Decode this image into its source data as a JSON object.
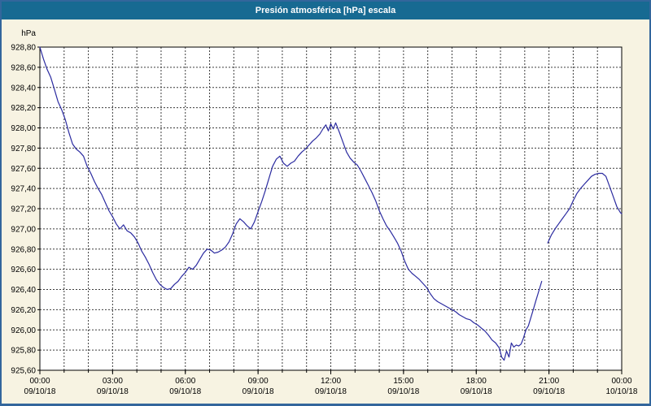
{
  "window": {
    "title": "Presión atmosférica [hPa] escala"
  },
  "colors": {
    "titlebar_bg": "#176a92",
    "titlebar_text": "#ffffff",
    "window_bg": "#f7f3e2",
    "window_border": "#33669c",
    "plot_bg": "#ffffff",
    "plot_border": "#000000",
    "grid_color": "#3c3c3c",
    "line_color": "#2b2ba0",
    "axis_text": "#000000"
  },
  "chart_data": {
    "type": "line",
    "title": "Presión atmosférica [hPa] escala",
    "ylabel": "hPa",
    "ylim": [
      925.6,
      928.8
    ],
    "y_step": 0.2,
    "decimal_separator": ",",
    "xlim_hours": [
      0,
      24
    ],
    "x_minor_every_hours": 1,
    "grid": "dashed",
    "legend": "none",
    "x_major_ticks": [
      {
        "hour": 0,
        "time": "00:00",
        "date": "09/10/18"
      },
      {
        "hour": 3,
        "time": "03:00",
        "date": "09/10/18"
      },
      {
        "hour": 6,
        "time": "06:00",
        "date": "09/10/18"
      },
      {
        "hour": 9,
        "time": "09:00",
        "date": "09/10/18"
      },
      {
        "hour": 12,
        "time": "12:00",
        "date": "09/10/18"
      },
      {
        "hour": 15,
        "time": "15:00",
        "date": "09/10/18"
      },
      {
        "hour": 18,
        "time": "18:00",
        "date": "09/10/18"
      },
      {
        "hour": 21,
        "time": "21:00",
        "date": "09/10/18"
      },
      {
        "hour": 24,
        "time": "00:00",
        "date": "10/10/18"
      }
    ],
    "series": [
      {
        "name": "Presión atmosférica",
        "color": "#2b2ba0",
        "segments": [
          [
            [
              0,
              928.8
            ],
            [
              0.15,
              928.68
            ],
            [
              0.3,
              928.58
            ],
            [
              0.45,
              928.5
            ],
            [
              0.6,
              928.38
            ],
            [
              0.75,
              928.26
            ],
            [
              0.9,
              928.18
            ],
            [
              1.05,
              928.08
            ],
            [
              1.2,
              927.95
            ],
            [
              1.35,
              927.84
            ],
            [
              1.5,
              927.79
            ],
            [
              1.65,
              927.76
            ],
            [
              1.8,
              927.72
            ],
            [
              1.95,
              927.62
            ],
            [
              2.1,
              927.55
            ],
            [
              2.25,
              927.47
            ],
            [
              2.4,
              927.4
            ],
            [
              2.55,
              927.34
            ],
            [
              2.7,
              927.26
            ],
            [
              2.85,
              927.18
            ],
            [
              3,
              927.12
            ],
            [
              3.15,
              927.05
            ],
            [
              3.3,
              927.0
            ],
            [
              3.45,
              927.04
            ],
            [
              3.6,
              926.98
            ],
            [
              3.75,
              926.96
            ],
            [
              3.9,
              926.92
            ],
            [
              4.05,
              926.86
            ],
            [
              4.2,
              926.78
            ],
            [
              4.35,
              926.72
            ],
            [
              4.5,
              926.65
            ],
            [
              4.65,
              926.57
            ],
            [
              4.8,
              926.5
            ],
            [
              4.95,
              926.45
            ],
            [
              5.1,
              926.42
            ],
            [
              5.25,
              926.4
            ],
            [
              5.4,
              926.41
            ],
            [
              5.55,
              926.45
            ],
            [
              5.7,
              926.48
            ],
            [
              5.85,
              926.53
            ],
            [
              6,
              926.57
            ],
            [
              6.15,
              926.62
            ],
            [
              6.3,
              926.6
            ],
            [
              6.45,
              926.64
            ],
            [
              6.6,
              926.7
            ],
            [
              6.75,
              926.76
            ],
            [
              6.9,
              926.8
            ],
            [
              7.05,
              926.79
            ],
            [
              7.2,
              926.76
            ],
            [
              7.35,
              926.77
            ],
            [
              7.5,
              926.79
            ],
            [
              7.65,
              926.82
            ],
            [
              7.8,
              926.87
            ],
            [
              7.95,
              926.95
            ],
            [
              8.1,
              927.05
            ],
            [
              8.25,
              927.1
            ],
            [
              8.4,
              927.07
            ],
            [
              8.55,
              927.03
            ],
            [
              8.7,
              927.0
            ],
            [
              8.85,
              927.07
            ],
            [
              9,
              927.17
            ],
            [
              9.15,
              927.27
            ],
            [
              9.3,
              927.38
            ],
            [
              9.45,
              927.5
            ],
            [
              9.6,
              927.62
            ],
            [
              9.75,
              927.69
            ],
            [
              9.9,
              927.72
            ],
            [
              10.05,
              927.65
            ],
            [
              10.2,
              927.62
            ],
            [
              10.35,
              927.65
            ],
            [
              10.5,
              927.67
            ],
            [
              10.65,
              927.72
            ],
            [
              10.8,
              927.76
            ],
            [
              10.95,
              927.79
            ],
            [
              11.1,
              927.83
            ],
            [
              11.25,
              927.87
            ],
            [
              11.4,
              927.9
            ],
            [
              11.55,
              927.94
            ],
            [
              11.7,
              928.0
            ],
            [
              11.8,
              928.03
            ],
            [
              11.9,
              927.97
            ],
            [
              12,
              928.04
            ],
            [
              12.1,
              927.99
            ],
            [
              12.2,
              928.05
            ],
            [
              12.35,
              927.96
            ],
            [
              12.5,
              927.86
            ],
            [
              12.65,
              927.76
            ],
            [
              12.8,
              927.7
            ],
            [
              12.95,
              927.66
            ],
            [
              13.1,
              927.63
            ],
            [
              13.25,
              927.57
            ],
            [
              13.4,
              927.5
            ],
            [
              13.55,
              927.43
            ],
            [
              13.7,
              927.36
            ],
            [
              13.85,
              927.28
            ],
            [
              14,
              927.18
            ],
            [
              14.15,
              927.1
            ],
            [
              14.3,
              927.03
            ],
            [
              14.45,
              926.98
            ],
            [
              14.6,
              926.92
            ],
            [
              14.75,
              926.86
            ],
            [
              14.9,
              926.78
            ],
            [
              15.05,
              926.68
            ],
            [
              15.2,
              926.6
            ],
            [
              15.35,
              926.56
            ],
            [
              15.5,
              926.53
            ],
            [
              15.65,
              926.5
            ],
            [
              15.8,
              926.46
            ],
            [
              15.95,
              926.42
            ],
            [
              16.1,
              926.36
            ],
            [
              16.25,
              926.31
            ],
            [
              16.4,
              926.28
            ],
            [
              16.55,
              926.26
            ],
            [
              16.7,
              926.24
            ],
            [
              16.85,
              926.22
            ],
            [
              17,
              926.2
            ],
            [
              17.15,
              926.18
            ],
            [
              17.3,
              926.15
            ],
            [
              17.45,
              926.13
            ],
            [
              17.6,
              926.11
            ],
            [
              17.75,
              926.1
            ],
            [
              17.9,
              926.07
            ],
            [
              18.05,
              926.05
            ],
            [
              18.2,
              926.02
            ],
            [
              18.35,
              925.99
            ],
            [
              18.5,
              925.95
            ],
            [
              18.65,
              925.9
            ],
            [
              18.8,
              925.87
            ],
            [
              18.95,
              925.82
            ],
            [
              19.05,
              925.73
            ],
            [
              19.15,
              925.7
            ],
            [
              19.25,
              925.79
            ],
            [
              19.35,
              925.73
            ],
            [
              19.45,
              925.87
            ],
            [
              19.55,
              925.83
            ],
            [
              19.65,
              925.85
            ],
            [
              19.75,
              925.84
            ],
            [
              19.85,
              925.86
            ],
            [
              19.95,
              925.92
            ],
            [
              20.05,
              926.0
            ],
            [
              20.15,
              926.04
            ],
            [
              20.25,
              926.12
            ],
            [
              20.35,
              926.2
            ],
            [
              20.45,
              926.28
            ],
            [
              20.55,
              926.36
            ],
            [
              20.65,
              926.44
            ],
            [
              20.7,
              926.48
            ]
          ],
          [
            [
              20.95,
              926.86
            ],
            [
              21.1,
              926.94
            ],
            [
              21.25,
              927.0
            ],
            [
              21.4,
              927.05
            ],
            [
              21.55,
              927.1
            ],
            [
              21.7,
              927.15
            ],
            [
              21.85,
              927.2
            ],
            [
              22,
              927.28
            ],
            [
              22.15,
              927.35
            ],
            [
              22.3,
              927.4
            ],
            [
              22.45,
              927.44
            ],
            [
              22.6,
              927.48
            ],
            [
              22.75,
              927.52
            ],
            [
              22.9,
              927.54
            ],
            [
              23.05,
              927.55
            ],
            [
              23.2,
              927.55
            ],
            [
              23.35,
              927.52
            ],
            [
              23.5,
              927.42
            ],
            [
              23.65,
              927.32
            ],
            [
              23.8,
              927.22
            ],
            [
              23.95,
              927.16
            ],
            [
              24,
              927.15
            ]
          ]
        ]
      }
    ]
  }
}
